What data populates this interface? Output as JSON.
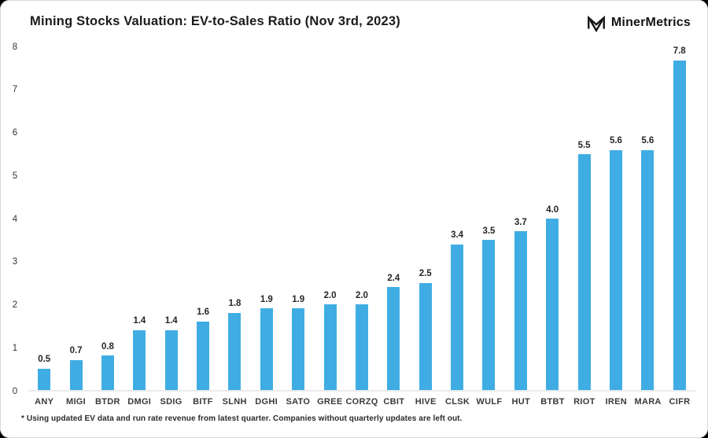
{
  "header": {
    "title": "Mining Stocks Valuation: EV-to-Sales Ratio (Nov 3rd, 2023)",
    "brand_name": "MinerMetrics"
  },
  "chart_data": {
    "type": "bar",
    "title": "Mining Stocks Valuation: EV-to-Sales Ratio (Nov 3rd, 2023)",
    "categories": [
      "ANY",
      "MIGI",
      "BTDR",
      "DMGI",
      "SDIG",
      "BITF",
      "SLNH",
      "DGHI",
      "SATO",
      "GREE",
      "CORZQ",
      "CBIT",
      "HIVE",
      "CLSK",
      "WULF",
      "HUT",
      "BTBT",
      "RIOT",
      "IREN",
      "MARA",
      "CIFR"
    ],
    "values": [
      0.5,
      0.7,
      0.8,
      1.4,
      1.4,
      1.6,
      1.8,
      1.9,
      1.9,
      2.0,
      2.0,
      2.4,
      2.5,
      3.4,
      3.5,
      3.7,
      4.0,
      5.5,
      5.6,
      5.6,
      7.8
    ],
    "xlabel": "",
    "ylabel": "",
    "ylim": [
      0,
      8
    ],
    "yticks": [
      0,
      1,
      2,
      3,
      4,
      5,
      6,
      7,
      8
    ],
    "grid": false,
    "legend": false,
    "value_labels": true,
    "bar_color": "#3FADE3",
    "baseline_color": "#ebebeb"
  },
  "footnote": "* Using updated EV data and run rate revenue from latest quarter. Companies without quarterly updates are left out."
}
